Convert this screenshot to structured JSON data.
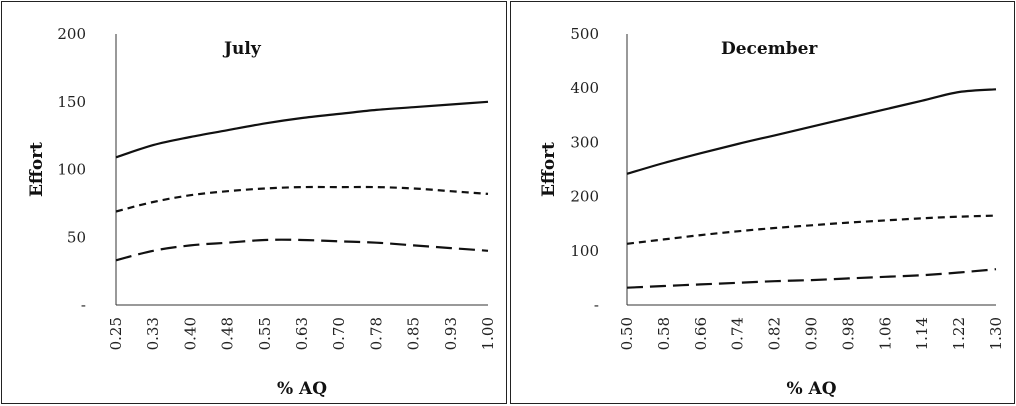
{
  "chart_data": [
    {
      "type": "line",
      "title": "July",
      "xlabel": "% AQ",
      "ylabel": "Effort",
      "ylim": [
        0,
        200
      ],
      "yticks": [
        "-",
        "50",
        "100",
        "150",
        "200"
      ],
      "x": [
        "0.25",
        "0.33",
        "0.40",
        "0.48",
        "0.55",
        "0.63",
        "0.70",
        "0.78",
        "0.85",
        "0.93",
        "1.00"
      ],
      "grid": false,
      "series": [
        {
          "style": "solid",
          "values": [
            109,
            118,
            124,
            129,
            134,
            138,
            141,
            144,
            146,
            148,
            150
          ]
        },
        {
          "style": "short-dash",
          "values": [
            69,
            76,
            81,
            84,
            86,
            87,
            87,
            87,
            86,
            84,
            82
          ]
        },
        {
          "style": "long-dash",
          "values": [
            33,
            40,
            44,
            46,
            48,
            48,
            47,
            46,
            44,
            42,
            40
          ]
        }
      ]
    },
    {
      "type": "line",
      "title": "December",
      "xlabel": "% AQ",
      "ylabel": "Effort",
      "ylim": [
        0,
        500
      ],
      "yticks": [
        "-",
        "100",
        "200",
        "300",
        "400",
        "500"
      ],
      "x": [
        "0.50",
        "0.58",
        "0.66",
        "0.74",
        "0.82",
        "0.90",
        "0.98",
        "1.06",
        "1.14",
        "1.22",
        "1.30"
      ],
      "grid": false,
      "series": [
        {
          "style": "solid",
          "values": [
            242,
            262,
            280,
            297,
            313,
            329,
            345,
            361,
            377,
            393,
            398
          ]
        },
        {
          "style": "short-dash",
          "values": [
            113,
            121,
            129,
            136,
            142,
            147,
            152,
            156,
            160,
            163,
            165
          ]
        },
        {
          "style": "long-dash",
          "values": [
            32,
            35,
            38,
            41,
            44,
            46,
            49,
            52,
            55,
            60,
            66
          ]
        }
      ]
    }
  ]
}
